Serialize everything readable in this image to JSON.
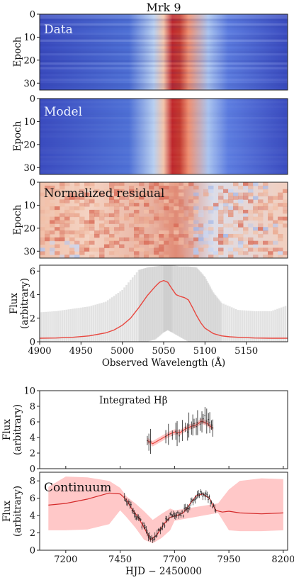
{
  "title": "Mrk 9",
  "panels": {
    "data": {
      "label": "Data",
      "ylabel": "Epoch",
      "yticks": [
        "0",
        "10",
        "20",
        "30"
      ]
    },
    "model": {
      "label": "Model",
      "ylabel": "Epoch",
      "yticks": [
        "0",
        "10",
        "20",
        "30"
      ]
    },
    "residual": {
      "label": "Normalized residual",
      "ylabel": "Epoch",
      "yticks": [
        "0",
        "10",
        "20",
        "30"
      ]
    },
    "spectrum": {
      "ylabel_1": "Flux",
      "ylabel_2": "(arbitrary)",
      "xlabel": "Observed Wavelength (Å)",
      "yticks": [
        "0",
        "2",
        "4",
        "6"
      ],
      "xticks": [
        "4900",
        "4950",
        "5000",
        "5050",
        "5100",
        "5150"
      ]
    },
    "hbeta": {
      "label": "Integrated Hβ",
      "ylabel_1": "Flux",
      "ylabel_2": "(arbitrary)",
      "yticks": [
        "0",
        "2",
        "4",
        "6",
        "8",
        "10"
      ]
    },
    "continuum": {
      "label": "Continuum",
      "ylabel_1": "Flux",
      "ylabel_2": "(arbitrary)",
      "xlabel": "HJD − 2450000",
      "yticks": [
        "0",
        "2",
        "4",
        "6",
        "8"
      ],
      "xticks": [
        "7200",
        "7450",
        "7700",
        "7950",
        "8200"
      ]
    }
  },
  "chart_data": [
    {
      "type": "heatmap",
      "title": "Mrk 9",
      "panel": "Data",
      "ylabel": "Epoch",
      "ylim": [
        0,
        33
      ],
      "x_range_angstrom": [
        4900,
        5200
      ],
      "color_scale": "coolwarm",
      "peak_wavelength_angstrom": 5055
    },
    {
      "type": "heatmap",
      "panel": "Model",
      "ylabel": "Epoch",
      "ylim": [
        0,
        33
      ],
      "x_range_angstrom": [
        4900,
        5200
      ],
      "color_scale": "coolwarm",
      "peak_wavelength_angstrom": 5055
    },
    {
      "type": "heatmap",
      "panel": "Normalized residual",
      "ylabel": "Epoch",
      "ylim": [
        0,
        33
      ],
      "x_range_angstrom": [
        4900,
        5200
      ],
      "color_scale": "coolwarm"
    },
    {
      "type": "line",
      "xlabel": "Observed Wavelength (Å)",
      "ylabel": "Flux (arbitrary)",
      "xlim": [
        4900,
        5200
      ],
      "ylim": [
        0,
        6.5
      ],
      "series": [
        {
          "color": "#e8473f",
          "x": [
            4900,
            4920,
            4940,
            4960,
            4980,
            4990,
            5000,
            5010,
            5020,
            5030,
            5040,
            5045,
            5050,
            5055,
            5060,
            5065,
            5070,
            5075,
            5080,
            5085,
            5090,
            5095,
            5100,
            5110,
            5120,
            5130,
            5140,
            5150,
            5160,
            5180,
            5200
          ],
          "y": [
            0.3,
            0.32,
            0.38,
            0.5,
            0.75,
            1.0,
            1.4,
            2.0,
            2.9,
            3.9,
            4.7,
            5.05,
            5.2,
            5.05,
            4.5,
            4.0,
            3.85,
            3.75,
            3.55,
            2.9,
            2.2,
            1.6,
            1.15,
            0.7,
            0.5,
            0.42,
            0.38,
            0.35,
            0.32,
            0.3,
            0.3
          ]
        },
        {
          "color": "#cccccc",
          "x": [
            4900,
            4920,
            4940,
            4960,
            4980,
            5000,
            5020,
            5030,
            5040,
            5050,
            5055,
            5060,
            5070,
            5080,
            5090,
            5100,
            5110,
            5120,
            5140,
            5160,
            5180,
            5200
          ],
          "y_low": [
            0,
            0,
            0,
            0,
            0,
            0,
            0,
            0,
            0.2,
            0.8,
            1.0,
            0.8,
            0.4,
            0,
            0,
            0,
            0,
            0,
            0,
            0,
            0,
            0
          ],
          "y_high": [
            2.5,
            2.6,
            2.8,
            3.0,
            3.4,
            4.4,
            6.1,
            6.3,
            6.4,
            6.5,
            6.5,
            6.5,
            6.4,
            6.4,
            6.3,
            5.5,
            4.2,
            3.3,
            2.7,
            2.6,
            2.6,
            3.1
          ]
        }
      ]
    },
    {
      "type": "line",
      "title": "Integrated Hβ",
      "ylabel": "Flux (arbitrary)",
      "xlim": [
        7080,
        8220
      ],
      "ylim": [
        0,
        10
      ],
      "series": [
        {
          "color": "#e8473f",
          "x": [
            7575,
            7600,
            7625,
            7650,
            7675,
            7700,
            7725,
            7750,
            7775,
            7800,
            7825,
            7850,
            7875
          ],
          "y": [
            3.6,
            3.2,
            3.6,
            4.0,
            4.4,
            4.7,
            4.6,
            5.1,
            5.4,
            5.6,
            6.1,
            5.8,
            5.2
          ]
        },
        {
          "color": "#333333",
          "x": [
            7575,
            7582,
            7590,
            7660,
            7672,
            7690,
            7706,
            7712,
            7722,
            7736,
            7750,
            7760,
            7766,
            7778,
            7784,
            7790,
            7800,
            7806,
            7818,
            7826,
            7832,
            7840,
            7848,
            7856,
            7862,
            7870,
            7876
          ],
          "y": [
            3.6,
            3.4,
            3.5,
            4.1,
            4.4,
            4.3,
            4.8,
            4.5,
            4.2,
            4.9,
            5.3,
            4.7,
            5.6,
            5.2,
            5.6,
            5.8,
            5.4,
            5.9,
            5.7,
            6.0,
            6.4,
            6.8,
            6.1,
            6.3,
            5.9,
            5.6,
            5.2
          ]
        }
      ]
    },
    {
      "type": "line",
      "title": "Continuum",
      "xlabel": "HJD − 2450000",
      "ylabel": "Flux (arbitrary)",
      "xlim": [
        7080,
        8220
      ],
      "ylim": [
        0,
        9
      ],
      "series": [
        {
          "color": "#d42a2a",
          "x": [
            7120,
            7200,
            7300,
            7400,
            7450,
            7480,
            7500,
            7530,
            7560,
            7590,
            7620,
            7650,
            7680,
            7710,
            7740,
            7770,
            7800,
            7830,
            7860,
            7890,
            7920,
            7950,
            8000,
            8100,
            8200
          ],
          "y": [
            5.2,
            5.4,
            5.9,
            6.6,
            6.5,
            5.8,
            4.9,
            3.9,
            2.6,
            1.2,
            1.8,
            3.0,
            3.8,
            4.0,
            4.3,
            5.3,
            6.3,
            6.5,
            6.0,
            4.6,
            4.4,
            4.5,
            4.3,
            4.2,
            4.3
          ]
        },
        {
          "color": "#ffc8c8",
          "x": [
            7120,
            7200,
            7300,
            7400,
            7450,
            7480,
            7520,
            7560,
            7600,
            7640,
            7680,
            7700,
            7900,
            7950,
            8000,
            8100,
            8200
          ],
          "y_low": [
            2.3,
            2.3,
            2.4,
            3.0,
            4.6,
            3.8,
            2.6,
            1.2,
            0.8,
            1.4,
            2.3,
            3.4,
            4.3,
            2.3,
            2.2,
            2.2,
            2.3
          ],
          "y_high": [
            7.3,
            8.5,
            8.4,
            8.0,
            7.2,
            6.2,
            5.4,
            4.5,
            3.5,
            4.2,
            4.8,
            4.6,
            5.4,
            7.0,
            8.0,
            8.3,
            8.2
          ]
        }
      ]
    }
  ]
}
